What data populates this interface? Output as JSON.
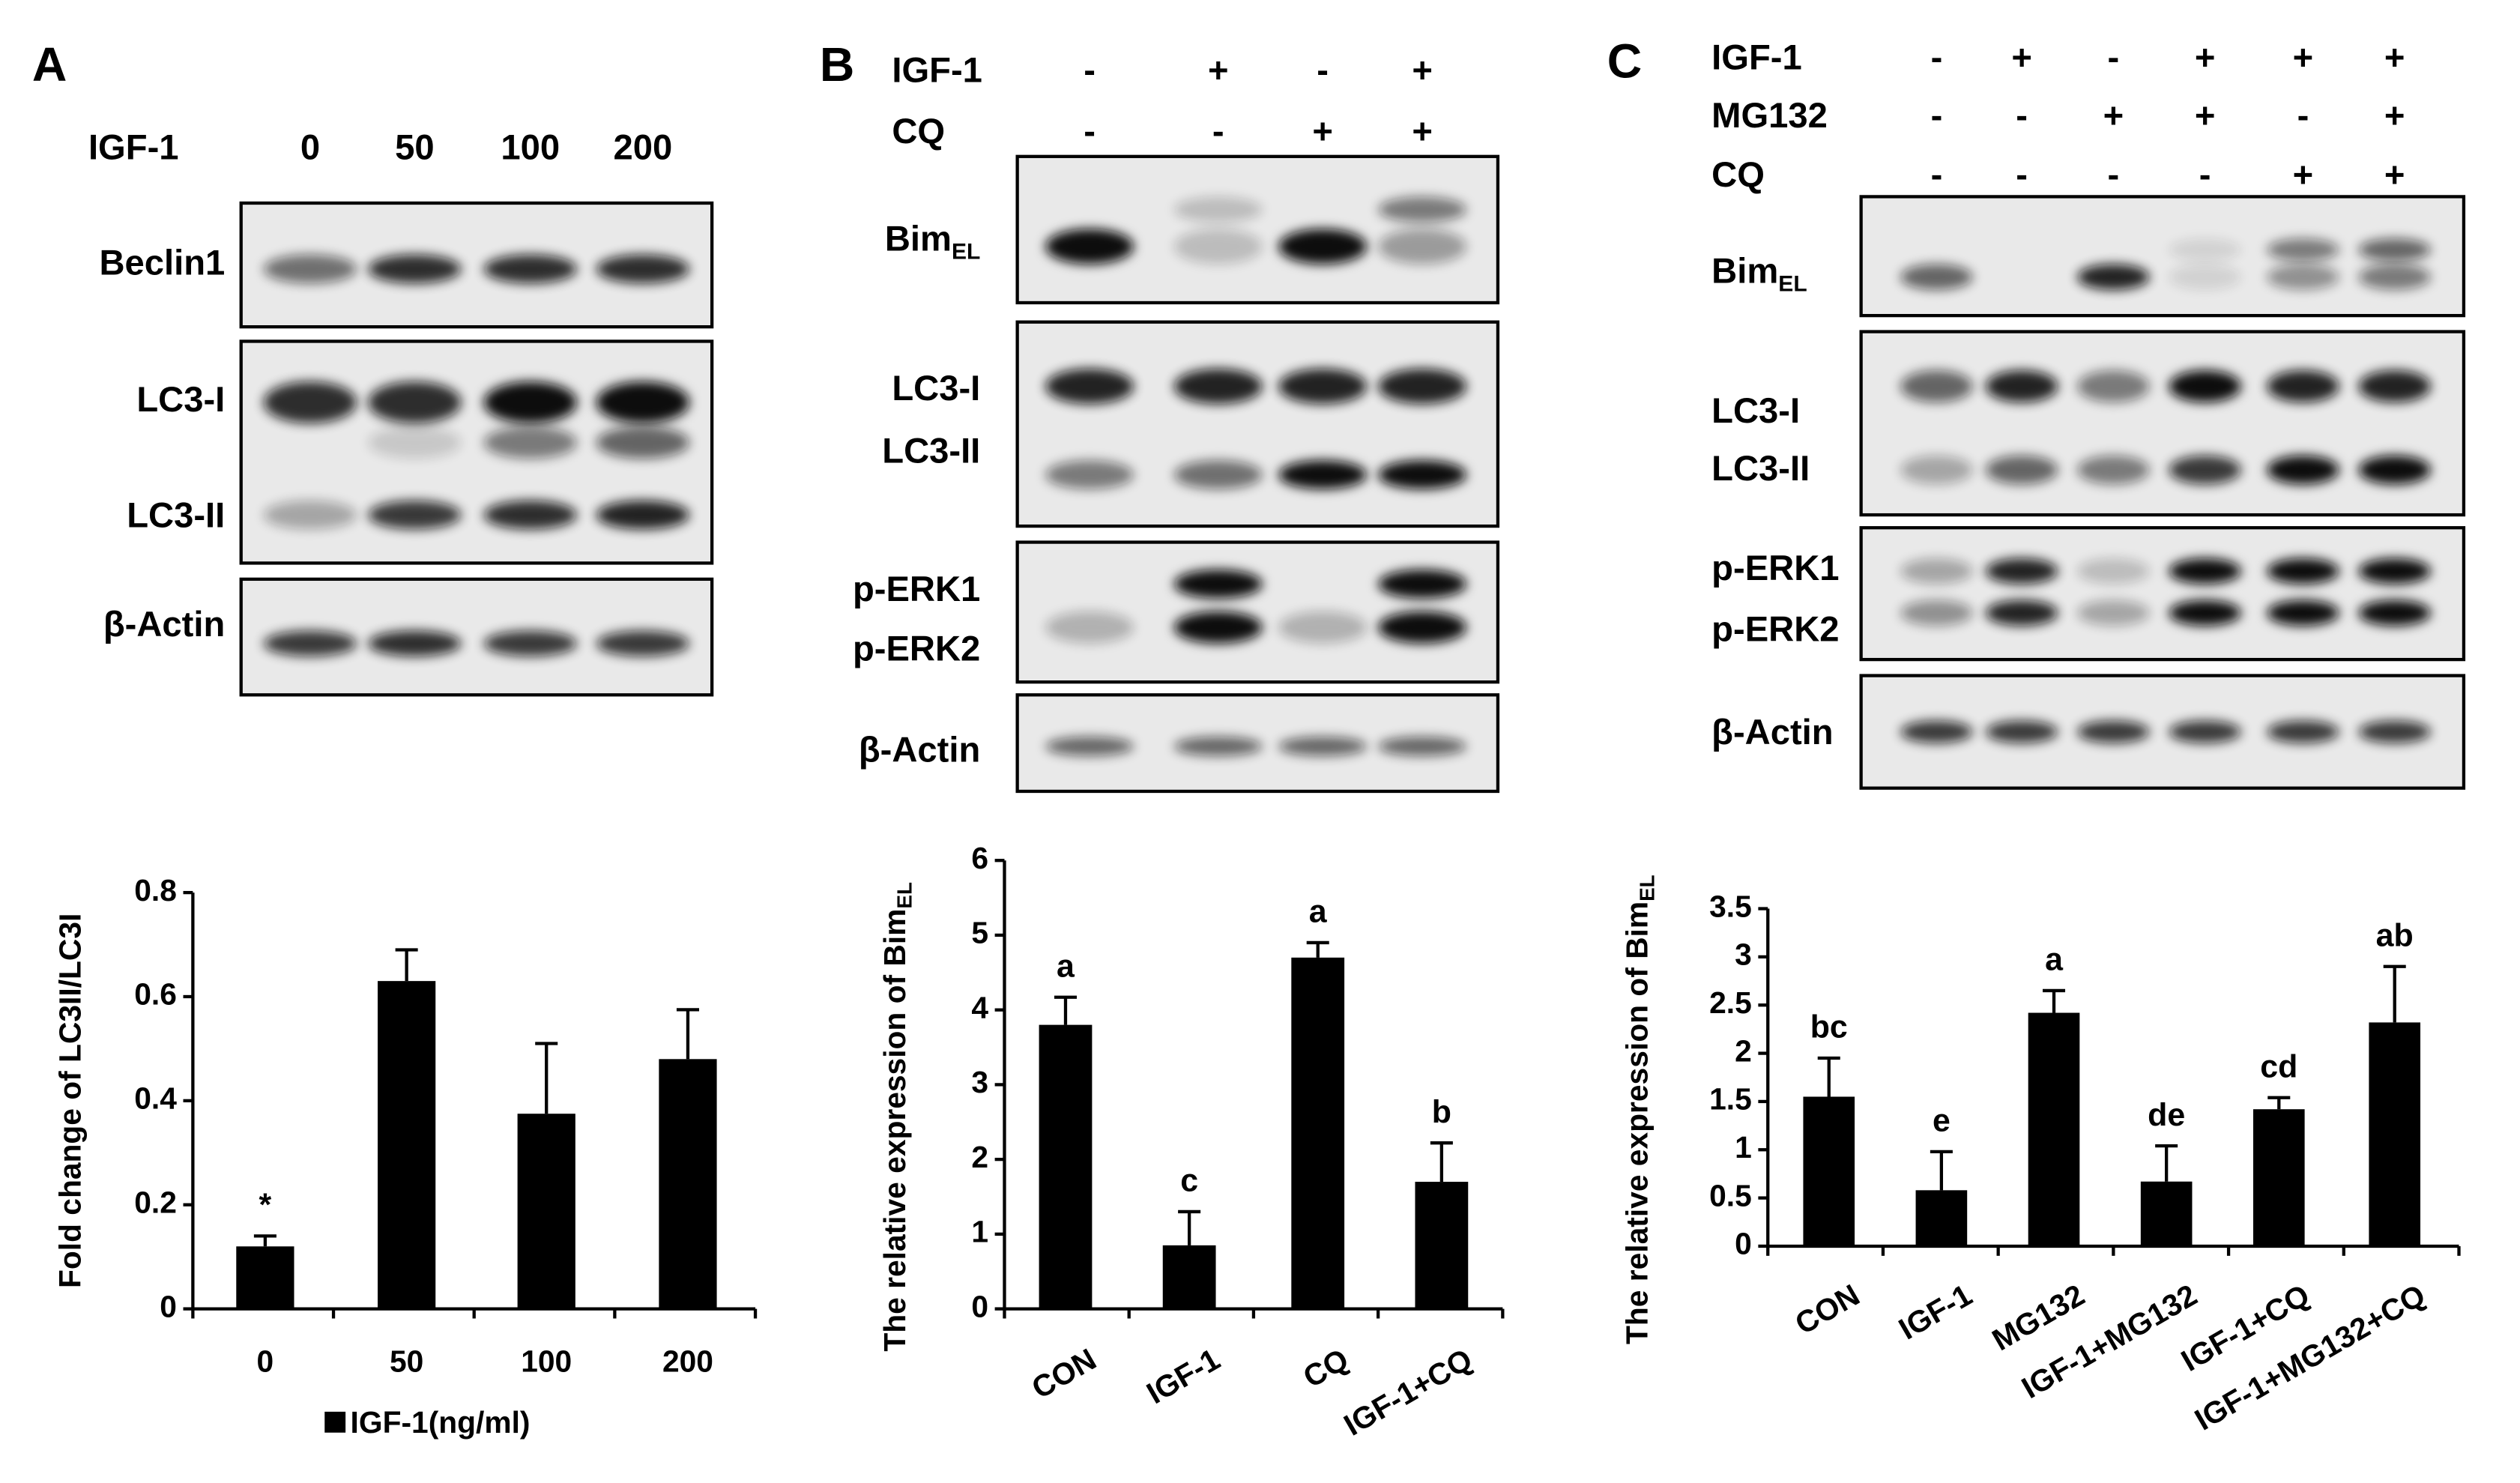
{
  "panel_labels": [
    "A",
    "B",
    "C"
  ],
  "blots": [
    {
      "treatments": [
        {
          "name": "IGF-1",
          "levels": [
            "0",
            "50",
            "100",
            "200"
          ]
        }
      ],
      "rows": [
        {
          "label": "Beclin1"
        },
        {
          "label": "LC3-I"
        },
        {
          "label": "LC3-II"
        },
        {
          "label": "β-Actin"
        }
      ]
    },
    {
      "treatments": [
        {
          "name": "IGF-1",
          "levels": [
            "-",
            "+",
            "-",
            "+"
          ]
        },
        {
          "name": "CQ",
          "levels": [
            "-",
            "-",
            "+",
            "+"
          ]
        }
      ],
      "rows": [
        {
          "label": "Bim",
          "subscript": "EL"
        },
        {
          "label": "LC3-I"
        },
        {
          "label": "LC3-II"
        },
        {
          "label": "p-ERK1"
        },
        {
          "label": "p-ERK2"
        },
        {
          "label": "β-Actin"
        }
      ]
    },
    {
      "treatments": [
        {
          "name": "IGF-1",
          "levels": [
            "-",
            "+",
            "-",
            "+",
            "+",
            "+"
          ]
        },
        {
          "name": "MG132",
          "levels": [
            "-",
            "-",
            "+",
            "+",
            "-",
            "+"
          ]
        },
        {
          "name": "CQ",
          "levels": [
            "-",
            "-",
            "-",
            "-",
            "+",
            "+"
          ]
        }
      ],
      "rows": [
        {
          "label": "Bim",
          "subscript": "EL"
        },
        {
          "label": "LC3-I"
        },
        {
          "label": "LC3-II"
        },
        {
          "label": "p-ERK1"
        },
        {
          "label": "p-ERK2"
        },
        {
          "label": "β-Actin"
        }
      ]
    }
  ],
  "chart_data": [
    {
      "type": "bar",
      "y_label": "Fold change of LC3II/LC3I",
      "legend": "IGF-1(ng/ml)",
      "color": "#000000",
      "categories": [
        "0",
        "50",
        "100",
        "200"
      ],
      "values": [
        0.12,
        0.63,
        0.375,
        0.48
      ],
      "errors": [
        0.02,
        0.06,
        0.135,
        0.095
      ],
      "annotations": [
        "*",
        null,
        null,
        null
      ],
      "ylim": [
        0,
        0.8
      ],
      "yticks": [
        0,
        0.2,
        0.4,
        0.6,
        0.8
      ]
    },
    {
      "type": "bar",
      "y_label": "The relative expression of Bim",
      "y_label_subscript": "EL",
      "color": "#000000",
      "categories": [
        "CON",
        "IGF-1",
        "CQ",
        "IGF-1+CQ"
      ],
      "values": [
        3.8,
        0.85,
        4.7,
        1.7
      ],
      "errors": [
        0.37,
        0.45,
        0.2,
        0.52
      ],
      "annotations": [
        "a",
        "c",
        "a",
        "b"
      ],
      "ylim": [
        0,
        6
      ],
      "yticks": [
        0,
        1,
        2,
        3,
        4,
        5,
        6
      ]
    },
    {
      "type": "bar",
      "y_label": "The relative expression of Bim",
      "y_label_subscript": "EL",
      "color": "#000000",
      "categories": [
        "CON",
        "IGF-1",
        "MG132",
        "IGF-1+MG132",
        "IGF-1+CQ",
        "IGF-1+MG132+CQ"
      ],
      "values": [
        1.55,
        0.58,
        2.42,
        0.67,
        1.42,
        2.32
      ],
      "errors": [
        0.4,
        0.4,
        0.23,
        0.37,
        0.12,
        0.58
      ],
      "annotations": [
        "bc",
        "e",
        "a",
        "de",
        "cd",
        "ab"
      ],
      "ylim": [
        0,
        3.5
      ],
      "yticks": [
        0,
        0.5,
        1,
        1.5,
        2,
        2.5,
        3,
        3.5
      ]
    }
  ]
}
